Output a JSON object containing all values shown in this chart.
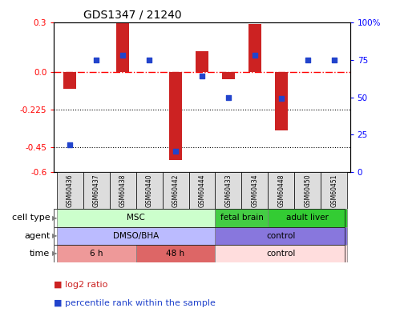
{
  "title": "GDS1347 / 21240",
  "samples": [
    "GSM60436",
    "GSM60437",
    "GSM60438",
    "GSM60440",
    "GSM60442",
    "GSM60444",
    "GSM60433",
    "GSM60434",
    "GSM60448",
    "GSM60450",
    "GSM60451"
  ],
  "log2_ratio": [
    -0.1,
    0.0,
    0.3,
    0.0,
    -0.53,
    0.13,
    -0.04,
    0.29,
    -0.35,
    0.0,
    0.0
  ],
  "percentile_rank": [
    18,
    75,
    78,
    75,
    14,
    64,
    50,
    78,
    49,
    75,
    75
  ],
  "ylim_left": [
    -0.6,
    0.3
  ],
  "ylim_right": [
    0,
    100
  ],
  "yticks_left": [
    0.3,
    0.0,
    -0.225,
    -0.45,
    -0.6
  ],
  "yticks_right": [
    100,
    75,
    50,
    25,
    0
  ],
  "hline_y": 0.0,
  "dotted_lines": [
    -0.225,
    -0.45
  ],
  "bar_color": "#cc2222",
  "dot_color": "#2244cc",
  "cell_type_groups": [
    {
      "label": "MSC",
      "start": 0,
      "end": 5,
      "color": "#ccffcc"
    },
    {
      "label": "fetal brain",
      "start": 6,
      "end": 7,
      "color": "#44cc44"
    },
    {
      "label": "adult liver",
      "start": 8,
      "end": 10,
      "color": "#33cc33"
    }
  ],
  "agent_groups": [
    {
      "label": "DMSO/BHA",
      "start": 0,
      "end": 5,
      "color": "#bbbbff"
    },
    {
      "label": "control",
      "start": 6,
      "end": 10,
      "color": "#8877dd"
    }
  ],
  "time_groups": [
    {
      "label": "6 h",
      "start": 0,
      "end": 2,
      "color": "#ee9999"
    },
    {
      "label": "48 h",
      "start": 3,
      "end": 5,
      "color": "#dd6666"
    },
    {
      "label": "control",
      "start": 6,
      "end": 10,
      "color": "#ffdddd"
    }
  ],
  "row_labels": [
    "cell type",
    "agent",
    "time"
  ],
  "legend_items": [
    {
      "label": "log2 ratio",
      "color": "#cc2222"
    },
    {
      "label": "percentile rank within the sample",
      "color": "#2244cc"
    }
  ],
  "bg_color": "#ffffff",
  "tick_label_bg": "#e8e8e8"
}
